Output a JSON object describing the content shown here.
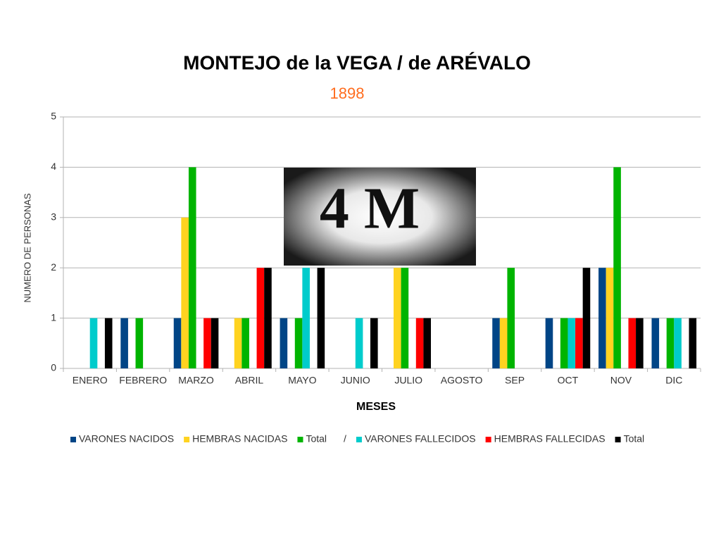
{
  "chart_data": {
    "type": "bar",
    "title": "MONTEJO de la VEGA / de ARÉVALO",
    "subtitle": "1898",
    "x_label": "MESES",
    "y_label": "NUMERO DE PERSONAS",
    "logo_text": "4 M",
    "legend_separator": "/",
    "categories": [
      "ENERO",
      "FEBRERO",
      "MARZO",
      "ABRIL",
      "MAYO",
      "JUNIO",
      "JULIO",
      "AGOSTO",
      "SEP",
      "OCT",
      "NOV",
      "DIC"
    ],
    "series": [
      {
        "name": "VARONES NACIDOS",
        "color": "#004586",
        "values": [
          0,
          1,
          1,
          0,
          1,
          0,
          0,
          0,
          1,
          1,
          2,
          1
        ]
      },
      {
        "name": "HEMBRAS NACIDAS",
        "color": "#ffd320",
        "values": [
          0,
          0,
          3,
          1,
          0,
          0,
          2,
          0,
          1,
          0,
          2,
          0
        ]
      },
      {
        "name": "Total",
        "color": "#00b400",
        "values": [
          0,
          1,
          4,
          1,
          1,
          0,
          2,
          0,
          2,
          1,
          4,
          1
        ]
      },
      {
        "name": "VARONES FALLECIDOS",
        "color": "#00cccc",
        "values": [
          1,
          0,
          0,
          0,
          2,
          1,
          0,
          0,
          0,
          1,
          0,
          1
        ]
      },
      {
        "name": "HEMBRAS FALLECIDAS",
        "color": "#ff0000",
        "values": [
          0,
          0,
          1,
          2,
          0,
          0,
          1,
          0,
          0,
          1,
          1,
          0
        ]
      },
      {
        "name": "Total",
        "color": "#000000",
        "values": [
          1,
          0,
          1,
          2,
          2,
          1,
          1,
          0,
          0,
          2,
          1,
          1
        ]
      }
    ],
    "ylim": [
      0,
      5
    ],
    "yticks": [
      0,
      1,
      2,
      3,
      4,
      5
    ],
    "grid": true,
    "legend": "bottom"
  }
}
